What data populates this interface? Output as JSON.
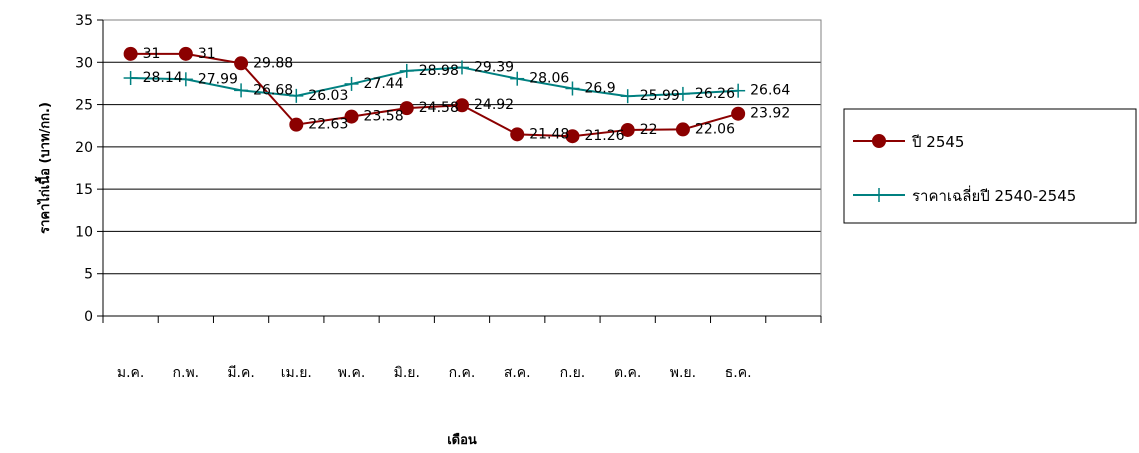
{
  "chart_data": {
    "type": "line",
    "xlabel": "เดือน",
    "ylabel": "ราคาไก่เนื้อ (บาท/กก.)",
    "ylim": [
      0,
      35
    ],
    "yticks": [
      0,
      5,
      10,
      15,
      20,
      25,
      30,
      35
    ],
    "grid": true,
    "legend_position": "right",
    "categories": [
      "ม.ค.",
      "ก.พ.",
      "มี.ค.",
      "เม.ย.",
      "พ.ค.",
      "มิ.ย.",
      "ก.ค.",
      "ส.ค.",
      "ก.ย.",
      "ต.ค.",
      "พ.ย.",
      "ธ.ค."
    ],
    "series": [
      {
        "name": "ปี 2545",
        "values": [
          31,
          31,
          29.88,
          22.63,
          23.58,
          24.58,
          24.92,
          21.48,
          21.26,
          22,
          22.06,
          23.92
        ],
        "labels": [
          "31",
          "31",
          "29.88",
          "22.63",
          "23.58",
          "24.58",
          "24.92",
          "21.48",
          "21.26",
          "22",
          "22.06",
          "23.92"
        ],
        "color": "#8b0000",
        "marker": "circle"
      },
      {
        "name": "ราคาเฉลี่ยปี 2540-2545",
        "values": [
          28.14,
          27.99,
          26.68,
          26.03,
          27.44,
          28.98,
          29.39,
          28.06,
          26.9,
          25.99,
          26.26,
          26.64
        ],
        "labels": [
          "28.14",
          "27.99",
          "26.68",
          "26.03",
          "27.44",
          "28.98",
          "29.39",
          "28.06",
          "26.9",
          "25.99",
          "26.26",
          "26.64"
        ],
        "color": "#008080",
        "marker": "plus"
      }
    ]
  }
}
